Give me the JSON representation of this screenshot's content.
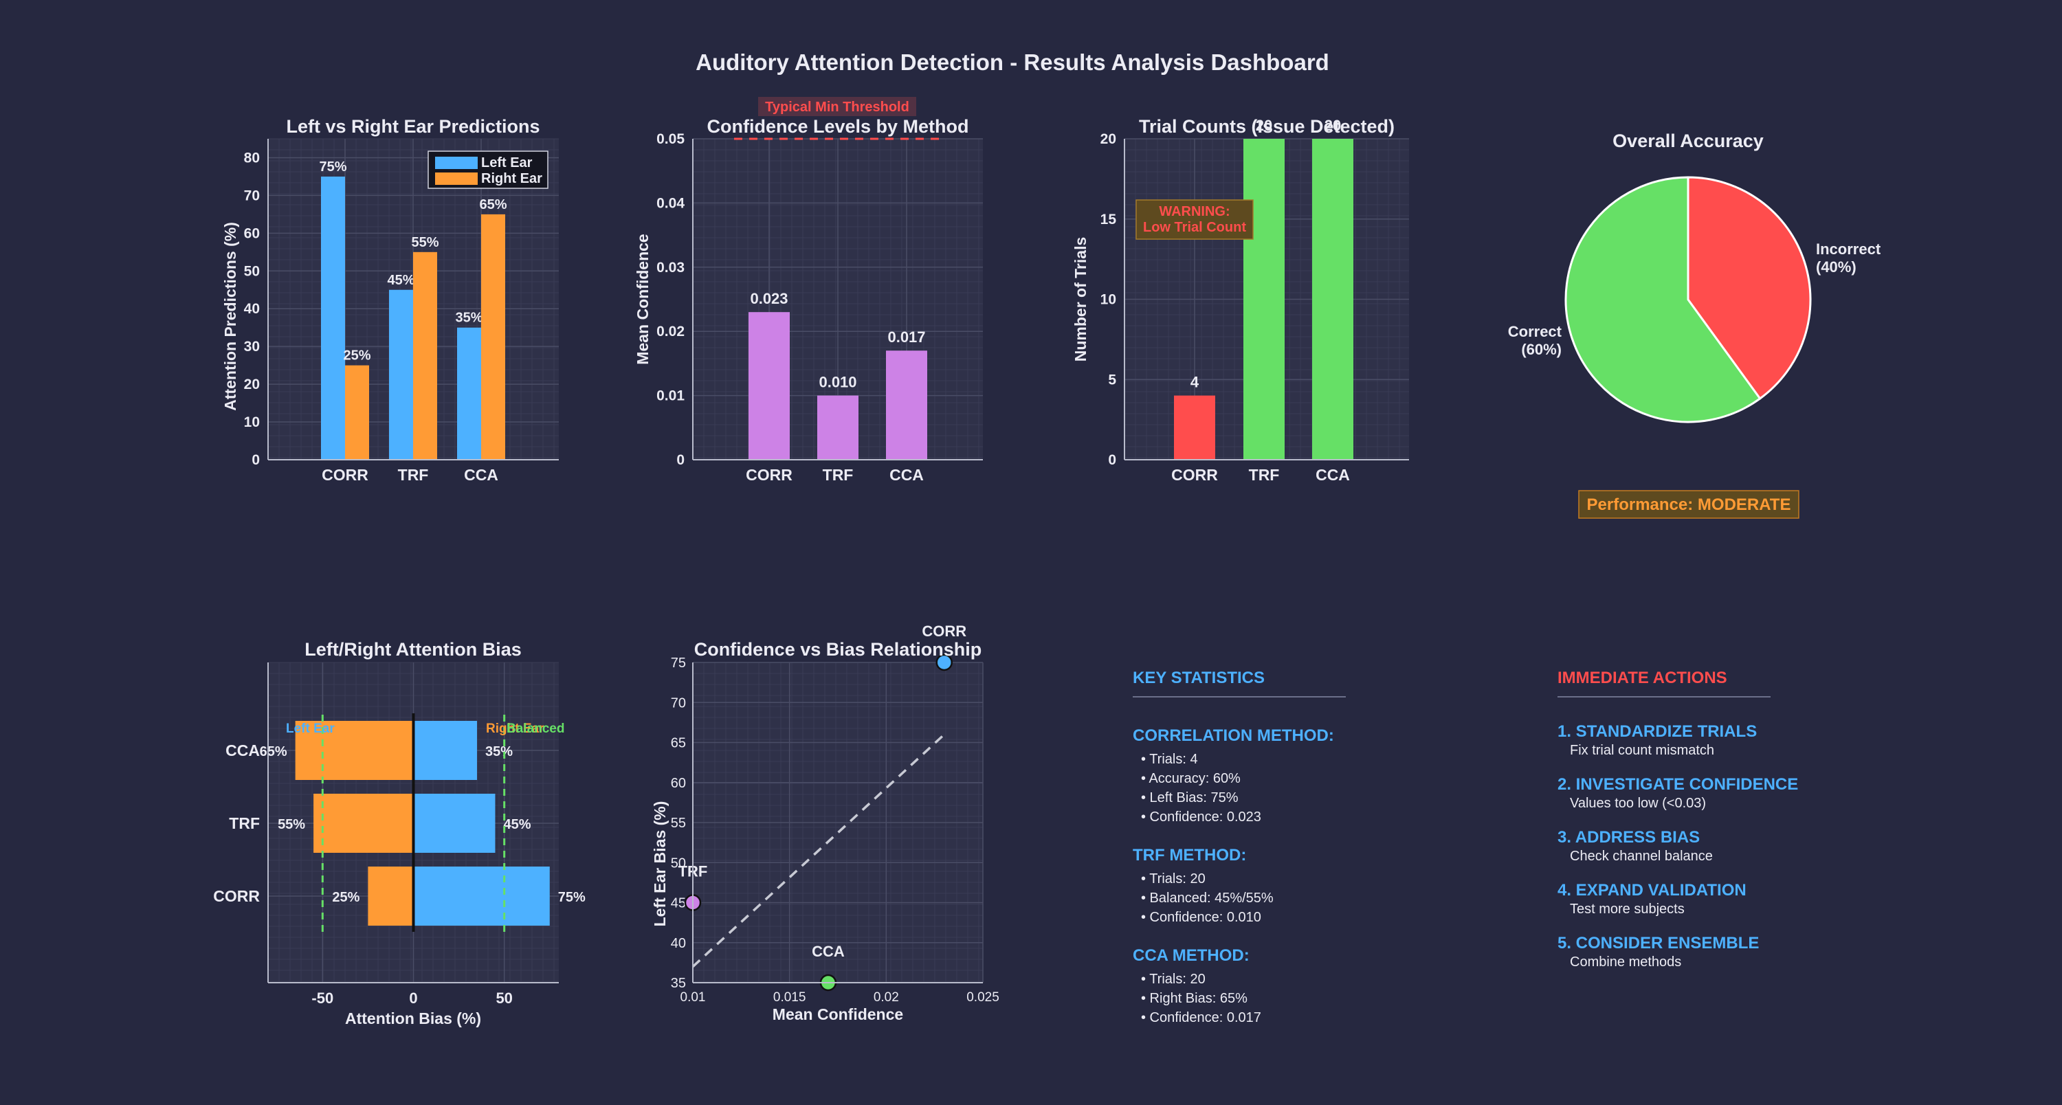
{
  "dashboard_title": "Auditory Attention Detection - Results Analysis Dashboard",
  "colors": {
    "background": "#262840",
    "plot_bg": "#2f3149",
    "grid": "#4a4d66",
    "left": "#4db1ff",
    "right": "#ff9b35",
    "confidence": "#cd82e6",
    "good": "#66e066",
    "bad": "#ff4d4d",
    "text": "#ececf4",
    "accent_blue": "#4db1ff",
    "accent_red": "#ff4d4d",
    "accent_orange": "#ff9b35"
  },
  "chart_data": [
    {
      "id": "ear-predictions",
      "type": "bar",
      "title": "Left vs Right Ear Predictions",
      "ylabel": "Attention Predictions (%)",
      "xlabel": "",
      "categories": [
        "CORR",
        "TRF",
        "CCA"
      ],
      "series": [
        {
          "name": "Left Ear",
          "values": [
            75,
            45,
            35
          ]
        },
        {
          "name": "Right Ear",
          "values": [
            25,
            55,
            65
          ]
        }
      ],
      "data_labels": [
        [
          "75%",
          "45%",
          "35%"
        ],
        [
          "25%",
          "55%",
          "65%"
        ]
      ],
      "ylim": [
        0,
        85
      ],
      "yticks": [
        0,
        10,
        20,
        30,
        40,
        50,
        60,
        70,
        80
      ],
      "grid": true,
      "legend": "top-right"
    },
    {
      "id": "confidence-levels",
      "type": "bar",
      "title": "Confidence Levels by Method",
      "ylabel": "Mean Confidence",
      "xlabel": "",
      "categories": [
        "CORR",
        "TRF",
        "CCA"
      ],
      "values": [
        0.023,
        0.01,
        0.017
      ],
      "data_labels": [
        "0.023",
        "0.010",
        "0.017"
      ],
      "ylim": [
        0,
        0.05
      ],
      "yticks": [
        0,
        0.01,
        0.02,
        0.03,
        0.04,
        0.05
      ],
      "ytick_labels": [
        "0",
        "0.01",
        "0.02",
        "0.03",
        "0.04",
        "0.05"
      ],
      "threshold": {
        "value": 0.05,
        "label": "Typical Min Threshold"
      },
      "grid": true
    },
    {
      "id": "trial-counts",
      "type": "bar",
      "title": "Trial Counts (Issue Detected)",
      "ylabel": "Number of Trials",
      "xlabel": "",
      "categories": [
        "CORR",
        "TRF",
        "CCA"
      ],
      "values": [
        4,
        20,
        20
      ],
      "data_labels": [
        "4",
        "20",
        "20"
      ],
      "ylim": [
        0,
        20
      ],
      "yticks": [
        0,
        5,
        10,
        15,
        20
      ],
      "warning_text": [
        "WARNING:",
        "Low Trial Count"
      ],
      "grid": true
    },
    {
      "id": "overall-accuracy",
      "type": "pie",
      "title": "Overall Accuracy",
      "labels": [
        "Correct\n(60%)",
        "Incorrect\n(40%)"
      ],
      "values": [
        60,
        40
      ],
      "performance_label": "Performance: MODERATE"
    },
    {
      "id": "attention-bias",
      "type": "bar",
      "orientation": "horizontal",
      "title": "Left/Right Attention Bias",
      "xlabel": "Attention Bias (%)",
      "ylabel": "",
      "categories": [
        "CORR",
        "TRF",
        "CCA"
      ],
      "series": [
        {
          "name": "Left Ear",
          "values": [
            75,
            45,
            35
          ]
        },
        {
          "name": "Right Ear",
          "values": [
            -25,
            -55,
            -65
          ]
        }
      ],
      "left_labels": [
        "25%",
        "55%",
        "65%"
      ],
      "right_labels": [
        "75%",
        "45%",
        "35%"
      ],
      "xlim": [
        -80,
        80
      ],
      "xticks": [
        -50,
        0,
        50
      ],
      "reference_lines": [
        -50,
        50
      ],
      "annotations": [
        "Left Ear",
        "Right Ear",
        "Balanced"
      ],
      "grid": true
    },
    {
      "id": "confidence-bias",
      "type": "scatter",
      "title": "Confidence vs Bias Relationship",
      "xlabel": "Mean Confidence",
      "ylabel": "Left Ear Bias (%)",
      "points": [
        {
          "label": "CORR",
          "x": 0.023,
          "y": 75
        },
        {
          "label": "TRF",
          "x": 0.01,
          "y": 45
        },
        {
          "label": "CCA",
          "x": 0.017,
          "y": 35
        }
      ],
      "trend": [
        {
          "x": 0.01,
          "y": 37
        },
        {
          "x": 0.023,
          "y": 66
        }
      ],
      "xlim": [
        0.01,
        0.025
      ],
      "ylim": [
        35,
        75
      ],
      "xticks": [
        0.01,
        0.015,
        0.02,
        0.025
      ],
      "xtick_labels": [
        "0.01",
        "0.015",
        "0.02",
        "0.025"
      ],
      "yticks": [
        35,
        40,
        45,
        50,
        55,
        60,
        65,
        70,
        75
      ],
      "grid": true
    }
  ],
  "key_statistics": {
    "heading": "KEY STATISTICS",
    "sections": [
      {
        "title": "CORRELATION METHOD:",
        "lines": [
          "• Trials: 4",
          "• Accuracy: 60%",
          "• Left Bias: 75%",
          "• Confidence: 0.023"
        ]
      },
      {
        "title": "TRF METHOD:",
        "lines": [
          "• Trials: 20",
          "• Balanced: 45%/55%",
          "• Confidence: 0.010"
        ]
      },
      {
        "title": "CCA METHOD:",
        "lines": [
          "• Trials: 20",
          "• Right Bias: 65%",
          "• Confidence: 0.017"
        ]
      }
    ]
  },
  "immediate_actions": {
    "heading": "IMMEDIATE ACTIONS",
    "items": [
      {
        "title": "1. STANDARDIZE TRIALS",
        "detail": "Fix trial count mismatch"
      },
      {
        "title": "2. INVESTIGATE CONFIDENCE",
        "detail": "Values too low (<0.03)"
      },
      {
        "title": "3. ADDRESS BIAS",
        "detail": "Check channel balance"
      },
      {
        "title": "4. EXPAND VALIDATION",
        "detail": "Test more subjects"
      },
      {
        "title": "5. CONSIDER ENSEMBLE",
        "detail": "Combine methods"
      }
    ]
  }
}
